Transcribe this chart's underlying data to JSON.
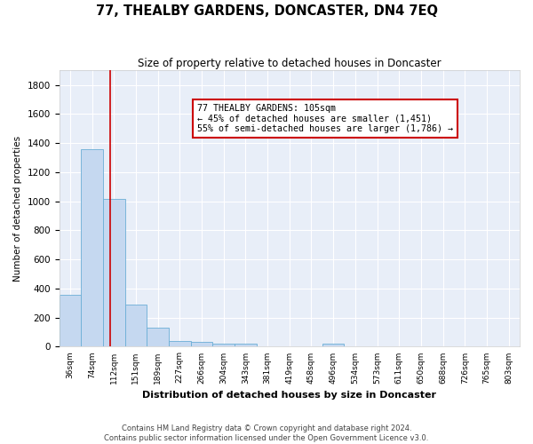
{
  "title": "77, THEALBY GARDENS, DONCASTER, DN4 7EQ",
  "subtitle": "Size of property relative to detached houses in Doncaster",
  "xlabel": "Distribution of detached houses by size in Doncaster",
  "ylabel": "Number of detached properties",
  "footer_line1": "Contains HM Land Registry data © Crown copyright and database right 2024.",
  "footer_line2": "Contains public sector information licensed under the Open Government Licence v3.0.",
  "bin_labels": [
    "36sqm",
    "74sqm",
    "112sqm",
    "151sqm",
    "189sqm",
    "227sqm",
    "266sqm",
    "304sqm",
    "343sqm",
    "381sqm",
    "419sqm",
    "458sqm",
    "496sqm",
    "534sqm",
    "573sqm",
    "611sqm",
    "650sqm",
    "688sqm",
    "726sqm",
    "765sqm",
    "803sqm"
  ],
  "bar_values": [
    355,
    1355,
    1015,
    290,
    130,
    40,
    35,
    22,
    18,
    0,
    0,
    0,
    20,
    0,
    0,
    0,
    0,
    0,
    0,
    0,
    0
  ],
  "bar_color": "#c5d8f0",
  "bar_edge_color": "#6baed6",
  "property_label": "77 THEALBY GARDENS: 105sqm",
  "annotation_line1": "← 45% of detached houses are smaller (1,451)",
  "annotation_line2": "55% of semi-detached houses are larger (1,786) →",
  "red_line_color": "#cc0000",
  "annotation_box_color": "#ffffff",
  "annotation_box_edge_color": "#cc0000",
  "ylim": [
    0,
    1900
  ],
  "yticks": [
    0,
    200,
    400,
    600,
    800,
    1000,
    1200,
    1400,
    1600,
    1800
  ],
  "fig_background_color": "#ffffff",
  "axes_background_color": "#e8eef8",
  "grid_color": "#ffffff",
  "red_line_x": 1.82
}
